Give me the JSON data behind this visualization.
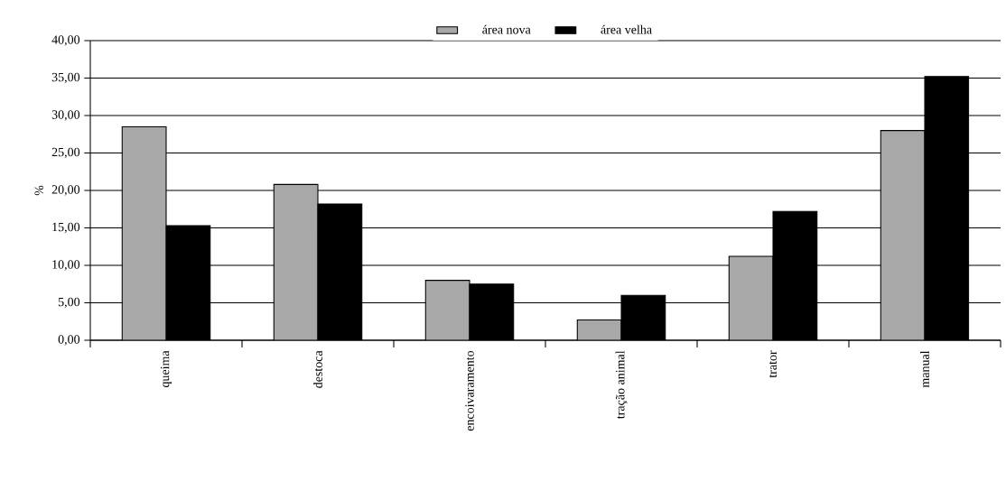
{
  "chart_data": {
    "type": "bar",
    "ylabel": "%",
    "categories": [
      "queima",
      "destoca",
      "encoivaramento",
      "tração animal",
      "trator",
      "manual"
    ],
    "series": [
      {
        "name": "área nova",
        "color": "#a8a8a8",
        "values": [
          28.5,
          20.8,
          8.0,
          2.7,
          11.2,
          28.0
        ]
      },
      {
        "name": "área velha",
        "color": "#000000",
        "values": [
          15.3,
          18.2,
          7.5,
          6.0,
          17.2,
          35.2
        ]
      }
    ],
    "ylim": [
      0,
      40
    ],
    "yticks": [
      {
        "value": 0,
        "label": "0,00"
      },
      {
        "value": 5,
        "label": "5,00"
      },
      {
        "value": 10,
        "label": "10,00"
      },
      {
        "value": 15,
        "label": "15,00"
      },
      {
        "value": 20,
        "label": "20,00"
      },
      {
        "value": 25,
        "label": "25,00"
      },
      {
        "value": 30,
        "label": "30,00"
      },
      {
        "value": 35,
        "label": "35,00"
      },
      {
        "value": 40,
        "label": "40,00"
      }
    ],
    "grid": "y",
    "legend": "top"
  }
}
